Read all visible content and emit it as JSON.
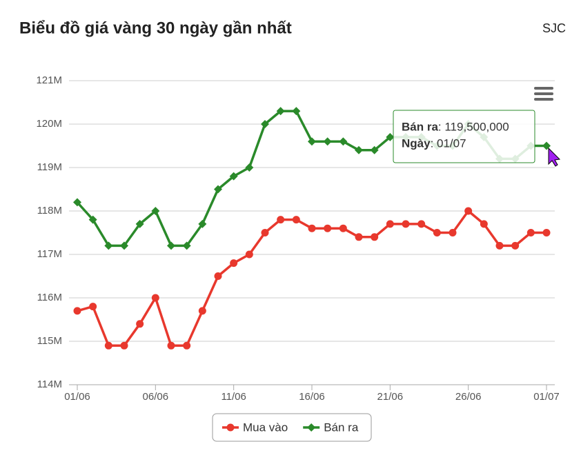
{
  "chart_data": {
    "type": "line",
    "title": "Biểu đồ giá vàng 30 ngày gần nhất",
    "subtitle": "SJC",
    "categories": [
      "01/06",
      null,
      null,
      null,
      null,
      "06/06",
      null,
      null,
      null,
      null,
      "11/06",
      null,
      null,
      null,
      null,
      "16/06",
      null,
      null,
      null,
      null,
      "21/06",
      null,
      null,
      null,
      null,
      "26/06",
      null,
      null,
      null,
      null,
      "01/07"
    ],
    "series": [
      {
        "name": "Mua vào",
        "color": "#e8382d",
        "marker": "circle",
        "values": [
          115700000,
          115800000,
          114900000,
          114900000,
          115400000,
          116000000,
          114900000,
          114900000,
          115700000,
          116500000,
          116800000,
          117000000,
          117500000,
          117800000,
          117800000,
          117600000,
          117600000,
          117600000,
          117400000,
          117400000,
          117700000,
          117700000,
          117700000,
          117500000,
          117500000,
          118000000,
          117700000,
          117200000,
          117200000,
          117500000,
          117500000
        ]
      },
      {
        "name": "Bán ra",
        "color": "#2a8a2a",
        "marker": "diamond",
        "values": [
          118200000,
          117800000,
          117200000,
          117200000,
          117700000,
          118000000,
          117200000,
          117200000,
          117700000,
          118500000,
          118800000,
          119000000,
          120000000,
          120300000,
          120300000,
          119600000,
          119600000,
          119600000,
          119400000,
          119400000,
          119700000,
          119700000,
          119700000,
          119500000,
          119500000,
          120000000,
          119700000,
          119200000,
          119200000,
          119500000,
          119500000
        ]
      }
    ],
    "ylim": [
      114000000,
      121000000
    ],
    "yticks": [
      {
        "value": 114000000,
        "label": "114M"
      },
      {
        "value": 115000000,
        "label": "115M"
      },
      {
        "value": 116000000,
        "label": "116M"
      },
      {
        "value": 117000000,
        "label": "117M"
      },
      {
        "value": 118000000,
        "label": "118M"
      },
      {
        "value": 119000000,
        "label": "119M"
      },
      {
        "value": 120000000,
        "label": "120M"
      },
      {
        "value": 121000000,
        "label": "121M"
      }
    ],
    "grid": true,
    "legend": "bottom",
    "tooltip": {
      "lines": [
        {
          "key": "Bán ra",
          "text": ": 119,500,000"
        },
        {
          "key": "Ngày",
          "text": ": 01/07"
        }
      ]
    }
  }
}
